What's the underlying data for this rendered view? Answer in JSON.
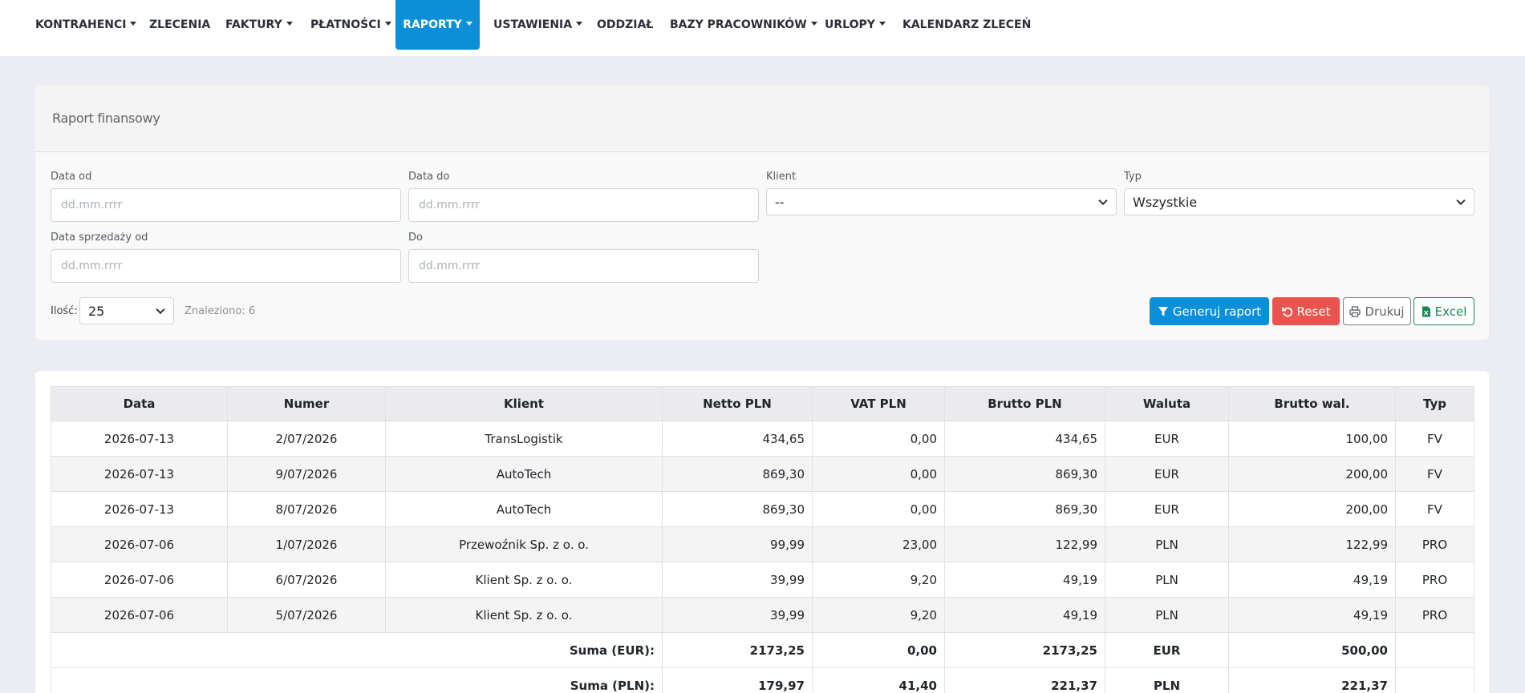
{
  "nav": {
    "kontrahenci": "KONTRAHENCI",
    "zlecenia": "ZLECENIA",
    "faktury": "FAKTURY",
    "platnosci": "PŁATNOŚCI",
    "raporty": "RAPORTY",
    "ustawienia": "USTAWIENIA",
    "oddzial": "ODDZIAŁ",
    "bazy": "BAZY PRACOWNIKÓW",
    "urlopy": "URLOPY",
    "kalendarz": "KALENDARZ ZLECEŃ",
    "active": "RAPORTY",
    "active_color": "#0a8fd8"
  },
  "report": {
    "title": "Raport finansowy"
  },
  "filters": {
    "date_from_label": "Data od",
    "date_from_placeholder": "dd.mm.rrrr",
    "date_to_label": "Data do",
    "date_to_placeholder": "dd.mm.rrrr",
    "client_label": "Klient",
    "client_value": "--",
    "type_label": "Typ",
    "type_value": "Wszystkie",
    "sale_date_from_label": "Data sprzedaży od",
    "sale_date_from_placeholder": "dd.mm.rrrr",
    "sale_date_to_label": "Do",
    "sale_date_to_placeholder": "dd.mm.rrrr",
    "count_label": "Ilość:",
    "count_value": "25",
    "found_text": "Znaleziono: 6"
  },
  "buttons": {
    "generate": "Generuj raport",
    "reset": "Reset",
    "print": "Drukuj",
    "excel": "Excel",
    "primary_color": "#0a8fd8",
    "danger_color": "#e9554e",
    "excel_color": "#198754"
  },
  "table": {
    "headers": [
      "Data",
      "Numer",
      "Klient",
      "Netto PLN",
      "VAT PLN",
      "Brutto PLN",
      "Waluta",
      "Brutto wal.",
      "Typ"
    ],
    "rows": [
      [
        "2026-07-13",
        "2/07/2026",
        "TransLogistik",
        "434,65",
        "0,00",
        "434,65",
        "EUR",
        "100,00",
        "FV"
      ],
      [
        "2026-07-13",
        "9/07/2026",
        "AutoTech",
        "869,30",
        "0,00",
        "869,30",
        "EUR",
        "200,00",
        "FV"
      ],
      [
        "2026-07-13",
        "8/07/2026",
        "AutoTech",
        "869,30",
        "0,00",
        "869,30",
        "EUR",
        "200,00",
        "FV"
      ],
      [
        "2026-07-06",
        "1/07/2026",
        "Przewoźnik Sp. z o. o.",
        "99,99",
        "23,00",
        "122,99",
        "PLN",
        "122,99",
        "PRO"
      ],
      [
        "2026-07-06",
        "6/07/2026",
        "Klient Sp. z o. o.",
        "39,99",
        "9,20",
        "49,19",
        "PLN",
        "49,19",
        "PRO"
      ],
      [
        "2026-07-06",
        "5/07/2026",
        "Klient Sp. z o. o.",
        "39,99",
        "9,20",
        "49,19",
        "PLN",
        "49,19",
        "PRO"
      ]
    ],
    "totals": [
      [
        "Suma (EUR):",
        "2173,25",
        "0,00",
        "2173,25",
        "EUR",
        "500,00"
      ],
      [
        "Suma (PLN):",
        "179,97",
        "41,40",
        "221,37",
        "PLN",
        "221,37"
      ]
    ]
  }
}
